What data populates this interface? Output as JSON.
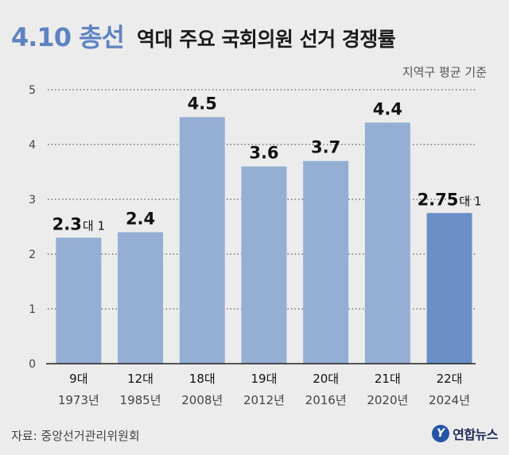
{
  "header": {
    "badge": "4.10 총선",
    "title": "역대 주요 국회의원 선거 경쟁률"
  },
  "subnote": "지역구 평균 기준",
  "source": "자료: 중앙선거관리위원회",
  "logo": {
    "icon": "yonhap-logo-icon",
    "text": "연합뉴스"
  },
  "colors": {
    "bar": "#95aed3",
    "bar_highlight": "#6a8fc4",
    "grid": "#333333",
    "axis": "#222222"
  },
  "chart_data": {
    "type": "bar",
    "categories": [
      "9대",
      "12대",
      "18대",
      "19대",
      "20대",
      "21대",
      "22대"
    ],
    "years": [
      "1973년",
      "1985년",
      "2008년",
      "2012년",
      "2016년",
      "2020년",
      "2024년"
    ],
    "values": [
      2.3,
      2.4,
      4.5,
      3.6,
      3.7,
      4.4,
      2.75
    ],
    "value_labels": [
      "2.3",
      "2.4",
      "4.5",
      "3.6",
      "3.7",
      "4.4",
      "2.75"
    ],
    "value_suffix": [
      "대 1",
      "",
      "",
      "",
      "",
      "",
      "대 1"
    ],
    "highlight_index": 6,
    "ylim": [
      0,
      5
    ],
    "yticks": [
      0,
      1,
      2,
      3,
      4,
      5
    ],
    "grid": true,
    "title": "역대 주요 국회의원 선거 경쟁률",
    "xlabel": "",
    "ylabel": ""
  }
}
